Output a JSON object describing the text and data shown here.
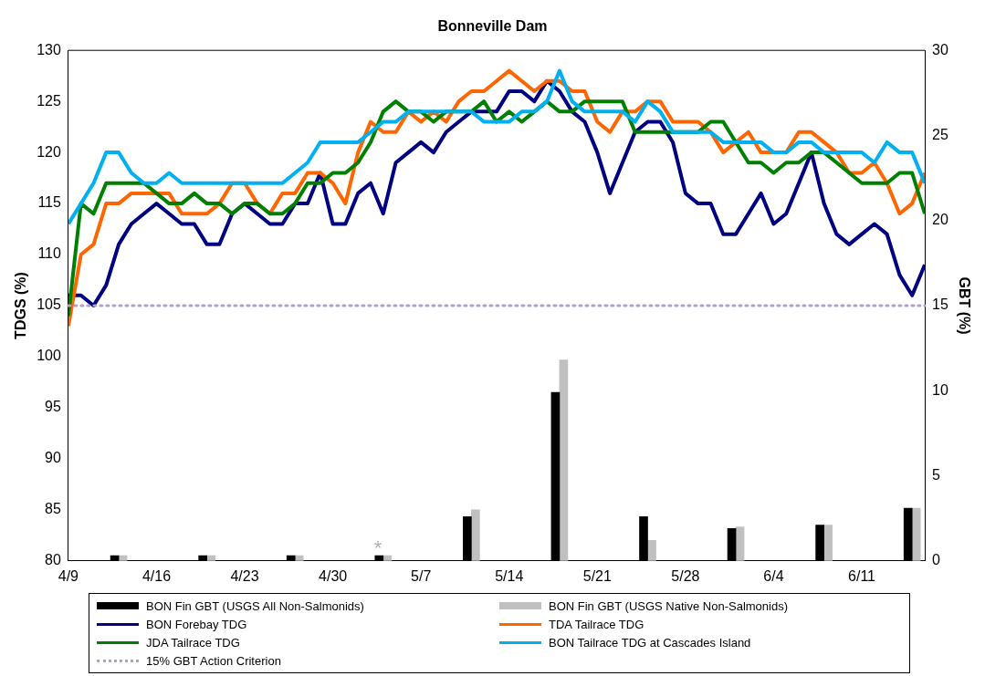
{
  "chart_data": {
    "type": "line",
    "title": "Bonneville Dam",
    "ylabel": "TDGS (%)",
    "y2label": "GBT (%)",
    "x": [
      "--04-09",
      "--04-10",
      "--04-11",
      "--04-12",
      "--04-13",
      "--04-14",
      "--04-15",
      "--04-16",
      "--04-17",
      "--04-18",
      "--04-19",
      "--04-20",
      "--04-21",
      "--04-22",
      "--04-23",
      "--04-24",
      "--04-25",
      "--04-26",
      "--04-27",
      "--04-28",
      "--04-29",
      "--04-30",
      "--05-01",
      "--05-02",
      "--05-03",
      "--05-04",
      "--05-05",
      "--05-06",
      "--05-07",
      "--05-08",
      "--05-09",
      "--05-10",
      "--05-11",
      "--05-12",
      "--05-13",
      "--05-14",
      "--05-15",
      "--05-16",
      "--05-17",
      "--05-18",
      "--05-19",
      "--05-20",
      "--05-21",
      "--05-22",
      "--05-23",
      "--05-24",
      "--05-25",
      "--05-26",
      "--05-27",
      "--05-28",
      "--05-29",
      "--05-30",
      "--05-31",
      "--06-01",
      "--06-02",
      "--06-03",
      "--06-04",
      "--06-05",
      "--06-06",
      "--06-07",
      "--06-08",
      "--06-09",
      "--06-10",
      "--06-11",
      "--06-12",
      "--06-13",
      "--06-14",
      "--06-15",
      "--06-16"
    ],
    "xlim": [
      "--04-09",
      "--06-16"
    ],
    "xticks": [
      {
        "value": "--04-09",
        "label": "4/9"
      },
      {
        "value": "--04-16",
        "label": "4/16"
      },
      {
        "value": "--04-23",
        "label": "4/23"
      },
      {
        "value": "--04-30",
        "label": "4/30"
      },
      {
        "value": "--05-07",
        "label": "5/7"
      },
      {
        "value": "--05-14",
        "label": "5/14"
      },
      {
        "value": "--05-21",
        "label": "5/21"
      },
      {
        "value": "--05-28",
        "label": "5/28"
      },
      {
        "value": "--06-04",
        "label": "6/4"
      },
      {
        "value": "--06-11",
        "label": "6/11"
      }
    ],
    "ylim": [
      80,
      130
    ],
    "yticks": [
      80,
      85,
      90,
      95,
      100,
      105,
      110,
      115,
      120,
      125,
      130
    ],
    "y2lim": [
      0,
      30
    ],
    "y2ticks": [
      0,
      5,
      10,
      15,
      20,
      25,
      30
    ],
    "grid": false,
    "legend": "bottom",
    "marker": "none",
    "series": [
      {
        "name": "BON Fin GBT (USGS All Non-Salmonids)",
        "type": "bar",
        "axis": "y2",
        "color": "#000000",
        "x": [
          "--04-13",
          "--04-20",
          "--04-27",
          "--05-04",
          "--05-11",
          "--05-18",
          "--05-25",
          "--06-01",
          "--06-08",
          "--06-15"
        ],
        "values": [
          0.3,
          0.3,
          0.3,
          0.3,
          2.6,
          9.9,
          2.6,
          1.9,
          2.1,
          3.1
        ]
      },
      {
        "name": "BON Fin GBT (USGS Native Non-Salmonids)",
        "type": "bar",
        "axis": "y2",
        "color": "#c0c0c0",
        "x": [
          "--04-13",
          "--04-20",
          "--04-27",
          "--05-04",
          "--05-11",
          "--05-18",
          "--05-25",
          "--06-01",
          "--06-08",
          "--06-15"
        ],
        "values": [
          0.3,
          0.3,
          0.3,
          0.3,
          3.0,
          11.8,
          1.2,
          2.0,
          2.1,
          3.1
        ]
      },
      {
        "name": "BON Forebay TDG",
        "color": "#000080",
        "values": [
          106,
          106,
          105,
          107,
          111,
          113,
          114,
          115,
          114,
          113,
          113,
          111,
          111,
          114,
          115,
          114,
          113,
          113,
          115,
          115,
          118,
          113,
          113,
          116,
          117,
          114,
          119,
          120,
          121,
          120,
          122,
          123,
          124,
          124,
          124,
          126,
          126,
          125,
          127,
          126,
          124,
          123,
          120,
          116,
          119,
          122,
          123,
          123,
          121,
          116,
          115,
          115,
          112,
          112,
          114,
          116,
          113,
          114,
          117,
          120,
          115,
          112,
          111,
          112,
          113,
          112,
          108,
          106,
          109
        ]
      },
      {
        "name": "TDA Tailrace TDG",
        "color": "#ff6600",
        "values": [
          103,
          110,
          111,
          115,
          115,
          116,
          116,
          116,
          116,
          114,
          114,
          114,
          115,
          117,
          117,
          115,
          114,
          116,
          116,
          118,
          118,
          117,
          115,
          120,
          123,
          122,
          122,
          124,
          123,
          124,
          123,
          125,
          126,
          126,
          127,
          128,
          127,
          126,
          127,
          127,
          126,
          126,
          123,
          122,
          124,
          124,
          125,
          125,
          123,
          123,
          123,
          122,
          120,
          121,
          122,
          120,
          120,
          120,
          122,
          122,
          121,
          120,
          118,
          118,
          119,
          117,
          114,
          115,
          118
        ]
      },
      {
        "name": "JDA Tailrace TDG",
        "color": "#008000",
        "values": [
          104,
          115,
          114,
          117,
          117,
          117,
          117,
          116,
          115,
          115,
          116,
          115,
          115,
          114,
          115,
          115,
          114,
          114,
          115,
          117,
          117,
          118,
          118,
          119,
          121,
          124,
          125,
          124,
          124,
          123,
          124,
          124,
          124,
          125,
          123,
          124,
          123,
          124,
          125,
          124,
          124,
          125,
          125,
          125,
          125,
          122,
          122,
          122,
          122,
          122,
          122,
          123,
          123,
          121,
          119,
          119,
          118,
          119,
          119,
          120,
          120,
          119,
          118,
          117,
          117,
          117,
          118,
          118,
          114
        ]
      },
      {
        "name": "BON Tailrace TDG at Cascades Island",
        "color": "#00b0f0",
        "values": [
          113,
          115,
          117,
          120,
          120,
          118,
          117,
          117,
          118,
          117,
          117,
          117,
          117,
          117,
          117,
          117,
          117,
          117,
          118,
          119,
          121,
          121,
          121,
          121,
          122,
          123,
          123,
          124,
          124,
          124,
          124,
          124,
          124,
          123,
          123,
          123,
          124,
          124,
          125,
          128,
          125,
          124,
          124,
          124,
          124,
          123,
          125,
          124,
          122,
          122,
          122,
          122,
          121,
          121,
          121,
          121,
          120,
          120,
          121,
          121,
          120,
          120,
          120,
          120,
          119,
          121,
          120,
          120,
          117
        ]
      }
    ],
    "ref_lines": [
      {
        "axis": "y2",
        "value": 15,
        "label": "15% GBT Action Criterion",
        "color": "#b1a0c7",
        "line_style": "dotted"
      }
    ],
    "annotations": [
      "*"
    ]
  }
}
